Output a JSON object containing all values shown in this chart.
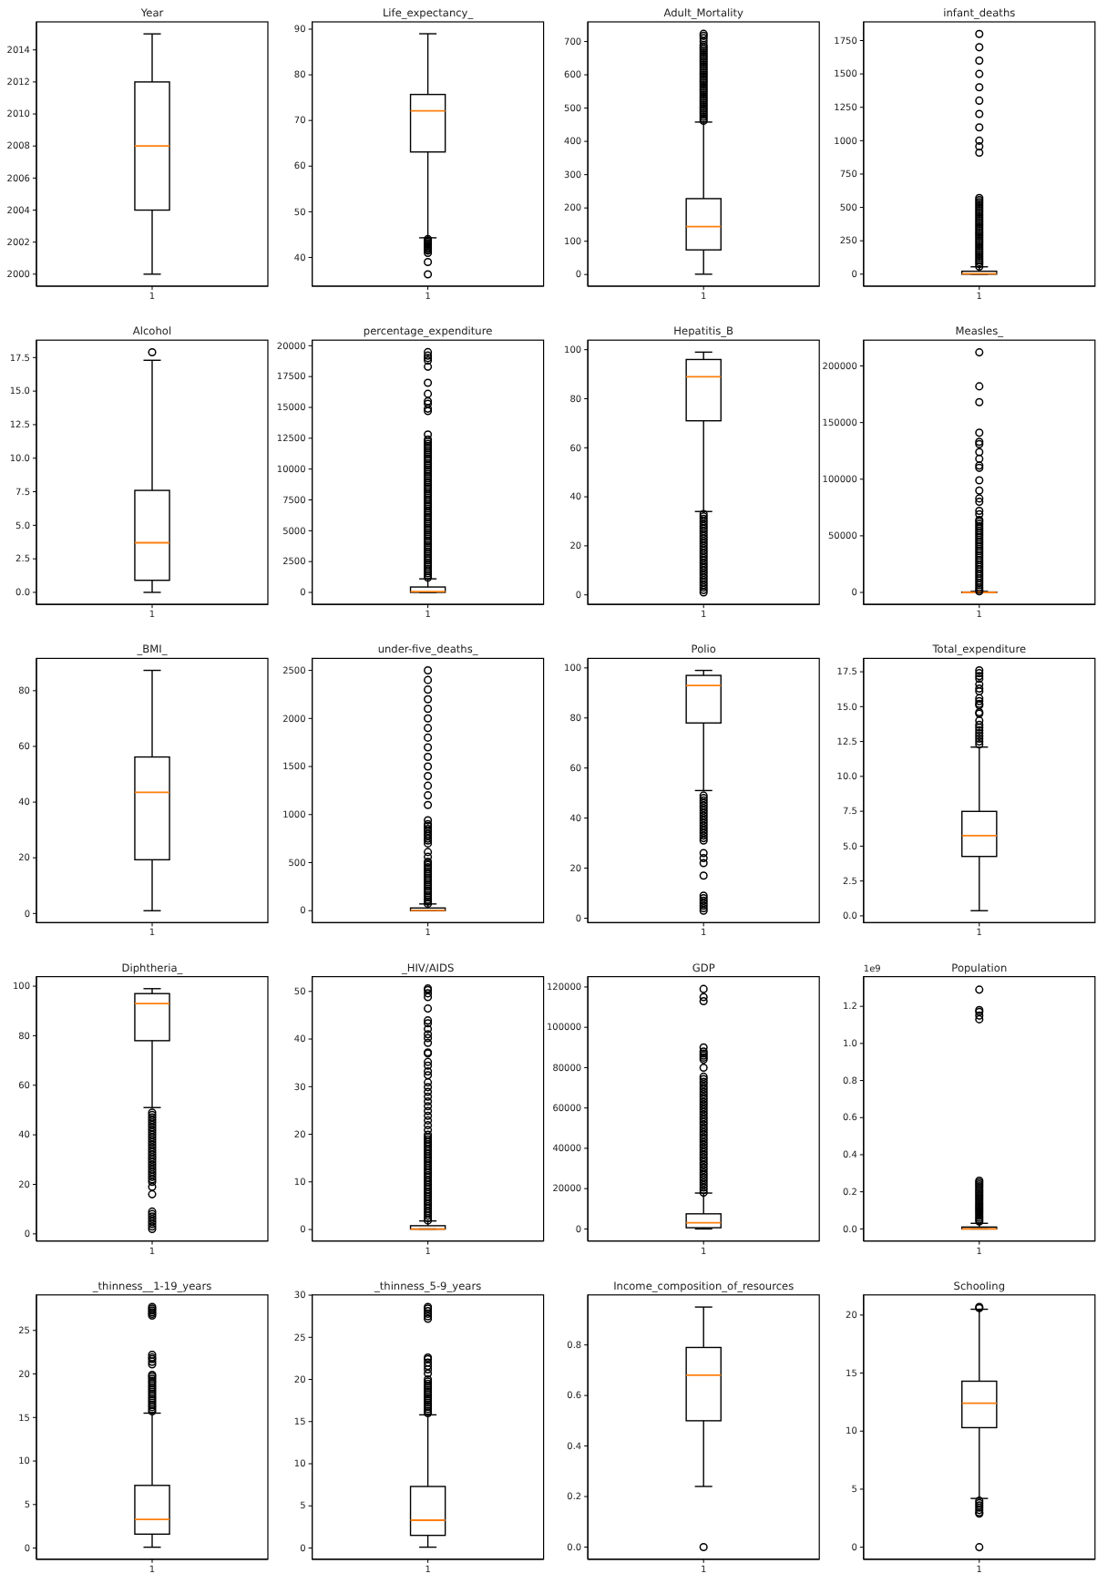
{
  "chart_data": [
    {
      "type": "box",
      "title": "Year",
      "categories": [
        "1"
      ],
      "boxes": [
        {
          "low": 2000,
          "q1": 2004,
          "median": 2008,
          "q3": 2012,
          "high": 2015
        }
      ],
      "ylim": [
        1999.25,
        2015.75
      ],
      "yticks": [
        2000,
        2002,
        2004,
        2006,
        2008,
        2010,
        2012,
        2014
      ]
    },
    {
      "type": "box",
      "title": "Life_expectancy_",
      "categories": [
        "1"
      ],
      "boxes": [
        {
          "low": 44.3,
          "q1": 63.1,
          "median": 72.1,
          "q3": 75.7,
          "high": 89,
          "outliers": [
            44.0,
            43.7,
            43.4,
            43.1,
            42.8,
            42.5,
            42.1,
            41.8,
            41.5,
            41.0,
            39.0,
            36.3
          ]
        }
      ],
      "ylim": [
        33.7,
        91.6
      ],
      "yticks": [
        40,
        50,
        60,
        70,
        80,
        90
      ]
    },
    {
      "type": "box",
      "title": "Adult_Mortality",
      "categories": [
        "1"
      ],
      "boxes": [
        {
          "low": 1,
          "q1": 74,
          "median": 144,
          "q3": 228,
          "high": 458,
          "outliers": [
            462,
            468,
            474,
            480,
            486,
            492,
            498,
            504,
            510,
            516,
            522,
            528,
            534,
            540,
            546,
            552,
            558,
            564,
            570,
            576,
            582,
            588,
            594,
            600,
            606,
            612,
            618,
            624,
            630,
            636,
            642,
            648,
            654,
            660,
            666,
            672,
            678,
            684,
            690,
            700,
            710,
            717,
            723
          ]
        }
      ],
      "ylim": [
        -35,
        759
      ],
      "yticks": [
        0,
        100,
        200,
        300,
        400,
        500,
        600,
        700
      ]
    },
    {
      "type": "box",
      "title": "infant_deaths",
      "categories": [
        "1"
      ],
      "boxes": [
        {
          "low": 0,
          "q1": 0,
          "median": 3,
          "q3": 22,
          "high": 55,
          "outliers": [
            57,
            75,
            90,
            105,
            120,
            135,
            150,
            165,
            180,
            195,
            210,
            225,
            240,
            255,
            270,
            285,
            300,
            315,
            330,
            345,
            360,
            375,
            390,
            405,
            420,
            435,
            450,
            465,
            480,
            495,
            510,
            525,
            540,
            555,
            570,
            910,
            957,
            1000,
            1100,
            1200,
            1300,
            1400,
            1500,
            1600,
            1700,
            1800
          ]
        }
      ],
      "ylim": [
        -90,
        1890
      ],
      "yticks": [
        0,
        250,
        500,
        750,
        1000,
        1250,
        1500,
        1750
      ]
    },
    {
      "type": "box",
      "title": "Alcohol",
      "categories": [
        "1"
      ],
      "boxes": [
        {
          "low": 0.0,
          "q1": 0.9,
          "median": 3.7,
          "q3": 7.6,
          "high": 17.3,
          "outliers": [
            17.9
          ]
        }
      ],
      "ylim": [
        -0.9,
        18.8
      ],
      "yticks": [
        {
          "value": 0,
          "label": "0.0"
        },
        2.5,
        {
          "value": 5,
          "label": "5.0"
        },
        7.5,
        {
          "value": 10,
          "label": "10.0"
        },
        12.5,
        {
          "value": 15,
          "label": "15.0"
        },
        17.5
      ]
    },
    {
      "type": "box",
      "title": "percentage_expenditure",
      "categories": [
        "1"
      ],
      "boxes": [
        {
          "low": 0,
          "q1": 5,
          "median": 65,
          "q3": 440,
          "high": 1100,
          "outliers": [
            1200,
            1380,
            1550,
            1720,
            1900,
            2080,
            2250,
            2420,
            2600,
            2780,
            2950,
            3120,
            3300,
            3480,
            3650,
            3820,
            4000,
            4180,
            4350,
            4520,
            4700,
            4880,
            5050,
            5220,
            5400,
            5580,
            5750,
            5920,
            6100,
            6280,
            6450,
            6620,
            6800,
            6980,
            7150,
            7320,
            7500,
            7680,
            7850,
            8020,
            8200,
            8380,
            8550,
            8720,
            8900,
            9080,
            9250,
            9420,
            9600,
            9780,
            9950,
            10120,
            10300,
            10480,
            10650,
            10820,
            11000,
            11180,
            11350,
            11520,
            11700,
            11880,
            12050,
            12220,
            12400,
            12800,
            14700,
            14900,
            15300,
            15500,
            16100,
            17000,
            18300,
            18800,
            19000,
            19200,
            19480
          ]
        }
      ],
      "ylim": [
        -974,
        20454
      ],
      "yticks": [
        0,
        2500,
        5000,
        7500,
        10000,
        12500,
        15000,
        17500,
        20000
      ]
    },
    {
      "type": "box",
      "title": "Hepatitis_B",
      "categories": [
        "1"
      ],
      "boxes": [
        {
          "low": 34,
          "q1": 71,
          "median": 89,
          "q3": 96,
          "high": 99,
          "outliers": [
            33,
            32,
            31,
            30,
            29,
            28,
            27,
            26,
            25,
            24,
            23,
            22,
            21,
            20,
            19,
            18,
            17,
            16,
            15,
            14,
            13,
            12,
            11,
            10,
            9,
            8,
            7,
            6,
            5,
            4,
            3,
            2,
            1
          ]
        }
      ],
      "ylim": [
        -3.9,
        103.9
      ],
      "yticks": [
        0,
        20,
        40,
        60,
        80,
        100
      ]
    },
    {
      "type": "box",
      "title": "Measles_",
      "categories": [
        "1"
      ],
      "boxes": [
        {
          "low": 0,
          "q1": 0,
          "median": 17,
          "q3": 360,
          "high": 900,
          "outliers": [
            1000,
            2500,
            4500,
            6500,
            8500,
            10500,
            12500,
            14500,
            16500,
            18500,
            20500,
            22500,
            24500,
            26500,
            28500,
            30500,
            32500,
            34500,
            36500,
            38500,
            40500,
            42500,
            44500,
            46500,
            48500,
            50500,
            52500,
            54500,
            56500,
            58500,
            60500,
            62500,
            64000,
            69000,
            72000,
            80000,
            83000,
            90000,
            99000,
            110000,
            112000,
            118000,
            124000,
            131000,
            133000,
            141000,
            168000,
            182000,
            212000
          ]
        }
      ],
      "ylim": [
        -10609,
        222792
      ],
      "yticks": [
        0,
        50000,
        100000,
        150000,
        200000
      ]
    },
    {
      "type": "box",
      "title": "_BMI_",
      "categories": [
        "1"
      ],
      "boxes": [
        {
          "low": 1,
          "q1": 19.3,
          "median": 43.5,
          "q3": 56.2,
          "high": 87.3
        }
      ],
      "ylim": [
        -3.3,
        91.6
      ],
      "yticks": [
        0,
        20,
        40,
        60,
        80
      ]
    },
    {
      "type": "box",
      "title": "under-five_deaths_",
      "categories": [
        "1"
      ],
      "boxes": [
        {
          "low": 0,
          "q1": 0,
          "median": 4,
          "q3": 28,
          "high": 70,
          "outliers": [
            72,
            95,
            115,
            138,
            160,
            183,
            205,
            228,
            250,
            273,
            295,
            318,
            340,
            363,
            385,
            408,
            430,
            453,
            475,
            495,
            510,
            560,
            610,
            700,
            730,
            750,
            780,
            800,
            830,
            850,
            880,
            900,
            940,
            1100,
            1200,
            1300,
            1400,
            1500,
            1600,
            1700,
            1800,
            1900,
            2000,
            2100,
            2200,
            2300,
            2400,
            2500
          ]
        }
      ],
      "ylim": [
        -125,
        2625
      ],
      "yticks": [
        0,
        500,
        1000,
        1500,
        2000,
        2500
      ]
    },
    {
      "type": "box",
      "title": "Polio",
      "categories": [
        "1"
      ],
      "boxes": [
        {
          "low": 51,
          "q1": 78,
          "median": 93,
          "q3": 97,
          "high": 99,
          "outliers": [
            49,
            48,
            47,
            46,
            45,
            44,
            43,
            42,
            41,
            40,
            39,
            38,
            37,
            36,
            35,
            34,
            33,
            32,
            31,
            26,
            24,
            22,
            17,
            9,
            8,
            7,
            6,
            5,
            4,
            3
          ]
        }
      ],
      "ylim": [
        -1.8,
        103.8
      ],
      "yticks": [
        0,
        20,
        40,
        60,
        80,
        100
      ]
    },
    {
      "type": "box",
      "title": "Total_expenditure",
      "categories": [
        "1"
      ],
      "boxes": [
        {
          "low": 0.37,
          "q1": 4.26,
          "median": 5.75,
          "q3": 7.49,
          "high": 12.1,
          "outliers": [
            12.3,
            12.5,
            12.7,
            12.9,
            13.1,
            13.3,
            13.5,
            13.7,
            14.0,
            14.5,
            14.6,
            15.1,
            15.2,
            15.4,
            15.6,
            16.1,
            16.3,
            16.6,
            17.0,
            17.2,
            17.4,
            17.6
          ]
        }
      ],
      "ylim": [
        -0.49,
        18.46
      ],
      "yticks": [
        {
          "value": 0,
          "label": "0.0"
        },
        2.5,
        {
          "value": 5,
          "label": "5.0"
        },
        7.5,
        {
          "value": 10,
          "label": "10.0"
        },
        12.5,
        {
          "value": 15,
          "label": "15.0"
        },
        17.5
      ]
    },
    {
      "type": "box",
      "title": "Diphtheria_",
      "categories": [
        "1"
      ],
      "boxes": [
        {
          "low": 51,
          "q1": 78,
          "median": 93,
          "q3": 97,
          "high": 99,
          "outliers": [
            49,
            48,
            47,
            46,
            45,
            44,
            43,
            42,
            41,
            40,
            39,
            38,
            37,
            36,
            35,
            34,
            33,
            32,
            31,
            30,
            29,
            28,
            27,
            26,
            25,
            24,
            23,
            22,
            21,
            19,
            16,
            9,
            8,
            7,
            6,
            5,
            4,
            3,
            2
          ]
        }
      ],
      "ylim": [
        -2.85,
        103.85
      ],
      "yticks": [
        0,
        20,
        40,
        60,
        80,
        100
      ]
    },
    {
      "type": "box",
      "title": "_HIV/AIDS",
      "categories": [
        "1"
      ],
      "boxes": [
        {
          "low": 0.1,
          "q1": 0.1,
          "median": 0.1,
          "q3": 0.8,
          "high": 1.8,
          "outliers": [
            1.9,
            2.4,
            2.9,
            3.4,
            3.9,
            4.4,
            4.9,
            5.4,
            5.9,
            6.4,
            6.9,
            7.4,
            7.9,
            8.4,
            8.9,
            9.4,
            9.9,
            10.4,
            10.9,
            11.4,
            11.9,
            12.4,
            12.9,
            13.4,
            13.9,
            14.4,
            14.9,
            15.4,
            15.9,
            16.4,
            16.9,
            17.4,
            17.9,
            18.4,
            18.9,
            19.4,
            19.9,
            20.9,
            21.9,
            22.9,
            23.9,
            24.9,
            25.9,
            26.9,
            27.9,
            28.9,
            29.9,
            30.9,
            32.4,
            33.2,
            34.4,
            35.2,
            37.0,
            37.2,
            39.2,
            40.2,
            41.0,
            42.1,
            43.3,
            43.9,
            46.4,
            48.8,
            49.6,
            50.3,
            50.6
          ]
        }
      ],
      "ylim": [
        -2.4,
        53.1
      ],
      "yticks": [
        0,
        10,
        20,
        30,
        40,
        50
      ]
    },
    {
      "type": "box",
      "title": "GDP",
      "categories": [
        "1"
      ],
      "boxes": [
        {
          "low": 0,
          "q1": 600,
          "median": 3100,
          "q3": 7500,
          "high": 17800,
          "outliers": [
            18000,
            19300,
            20500,
            21800,
            23000,
            24300,
            25500,
            26800,
            28000,
            29300,
            30500,
            31800,
            33000,
            34300,
            35500,
            36800,
            38000,
            39300,
            40500,
            41800,
            43000,
            44300,
            45500,
            46800,
            48000,
            49300,
            50500,
            51800,
            53000,
            54300,
            55500,
            56800,
            58000,
            59300,
            60500,
            61800,
            63000,
            64300,
            65500,
            66800,
            68000,
            69300,
            70500,
            71800,
            73000,
            74300,
            75500,
            80000,
            84000,
            85000,
            86000,
            87000,
            88000,
            90000,
            113000,
            115000,
            119000
          ]
        }
      ],
      "ylim": [
        -5957,
        125131
      ],
      "yticks": [
        0,
        20000,
        40000,
        60000,
        80000,
        100000,
        120000
      ]
    },
    {
      "type": "box",
      "title": "Population",
      "categories": [
        "1"
      ],
      "annotations": [
        "1e9"
      ],
      "boxes": [
        {
          "low": 0.0,
          "q1": 0.0,
          "median": 0.0,
          "q3": 0.01,
          "high": 0.03,
          "outliers": [
            0.04,
            0.05,
            0.06,
            0.07,
            0.08,
            0.09,
            0.1,
            0.11,
            0.12,
            0.13,
            0.14,
            0.15,
            0.16,
            0.17,
            0.18,
            0.19,
            0.2,
            0.21,
            0.22,
            0.23,
            0.24,
            0.25,
            0.26,
            1.13,
            1.15,
            1.17,
            1.18,
            1.29
          ]
        }
      ],
      "ylim": [
        -0.065,
        1.36
      ],
      "yticks": [
        {
          "value": 0,
          "label": "0.0"
        },
        0.2,
        0.4,
        0.6,
        0.8,
        {
          "value": 1,
          "label": "1.0"
        },
        1.2
      ]
    },
    {
      "type": "box",
      "title": "_thinness__1-19_years",
      "categories": [
        "1"
      ],
      "boxes": [
        {
          "low": 0.1,
          "q1": 1.6,
          "median": 3.3,
          "q3": 7.2,
          "high": 15.5,
          "outliers": [
            15.7,
            15.95,
            16.2,
            16.45,
            16.7,
            16.95,
            17.2,
            17.45,
            17.7,
            17.95,
            18.2,
            18.45,
            18.7,
            18.95,
            19.2,
            19.45,
            19.7,
            19.9,
            21.1,
            21.4,
            21.7,
            21.9,
            22.2,
            26.7,
            26.9,
            27.1,
            27.3,
            27.5,
            27.7
          ]
        }
      ],
      "ylim": [
        -1.28,
        29.08
      ],
      "yticks": [
        0,
        5,
        10,
        15,
        20,
        25
      ]
    },
    {
      "type": "box",
      "title": "_thinness_5-9_years",
      "categories": [
        "1"
      ],
      "boxes": [
        {
          "low": 0.1,
          "q1": 1.5,
          "median": 3.3,
          "q3": 7.3,
          "high": 15.8,
          "outliers": [
            16.0,
            16.25,
            16.5,
            16.75,
            17.0,
            17.25,
            17.5,
            17.75,
            18.0,
            18.25,
            18.5,
            18.75,
            19.0,
            19.25,
            19.5,
            19.75,
            20.0,
            20.7,
            21.2,
            21.6,
            22.0,
            22.4,
            22.6,
            27.2,
            27.5,
            27.8,
            28.1,
            28.4,
            28.6
          ]
        }
      ],
      "ylim": [
        -1.33,
        30.03
      ],
      "yticks": [
        0,
        5,
        10,
        15,
        20,
        25,
        30
      ]
    },
    {
      "type": "box",
      "title": "Income_composition_of_resources",
      "categories": [
        "1"
      ],
      "boxes": [
        {
          "low": 0.24,
          "q1": 0.5,
          "median": 0.68,
          "q3": 0.79,
          "high": 0.95,
          "outliers": [
            0.0
          ]
        }
      ],
      "ylim": [
        -0.048,
        0.998
      ],
      "yticks": [
        {
          "value": 0,
          "label": "0.0"
        },
        0.2,
        0.4,
        0.6,
        0.8
      ]
    },
    {
      "type": "box",
      "title": "Schooling",
      "categories": [
        "1"
      ],
      "boxes": [
        {
          "low": 4.2,
          "q1": 10.3,
          "median": 12.4,
          "q3": 14.3,
          "high": 20.5,
          "outliers": [
            20.6,
            20.7,
            4.0,
            3.8,
            3.6,
            3.4,
            3.2,
            3.0,
            2.9,
            0.0
          ]
        }
      ],
      "ylim": [
        -1.035,
        21.735
      ],
      "yticks": [
        0,
        5,
        10,
        15,
        20
      ]
    }
  ]
}
